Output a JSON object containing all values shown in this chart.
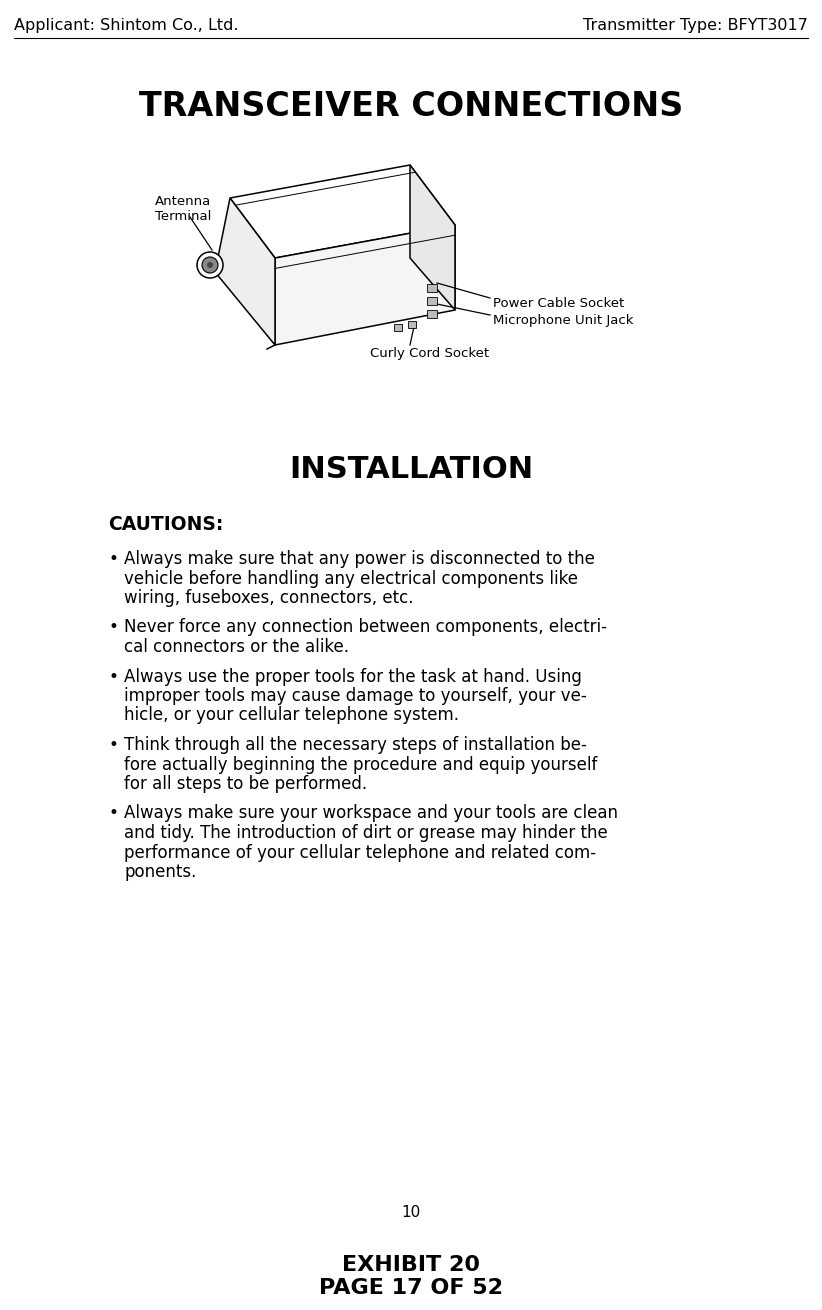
{
  "bg_color": "#ffffff",
  "header_left": "Applicant: Shintom Co., Ltd.",
  "header_right": "Transmitter Type: BFYT3017",
  "section1_title": "TRANSCEIVER CONNECTIONS",
  "antenna_label": "Antenna\nTerminal",
  "power_label": "Power Cable Socket",
  "mic_label": "Microphone Unit Jack",
  "curly_label": "Curly Cord Socket",
  "section2_title": "INSTALLATION",
  "cautions_title": "CAUTIONS:",
  "bullet_points": [
    "Always make sure that any power is disconnected to the\nvehicle before handling any electrical components like\nwiring, fuseboxes, connectors, etc.",
    "Never force any connection between components, electri-\ncal connectors or the alike.",
    "Always use the proper tools for the task at hand. Using\nimproper tools may cause damage to yourself, your ve-\nhicle, or your cellular telephone system.",
    "Think through all the necessary steps of installation be-\nfore actually beginning the procedure and equip yourself\nfor all steps to be performed.",
    "Always make sure your workspace and your tools are clean\nand tidy. The introduction of dirt or grease may hinder the\nperformance of your cellular telephone and related com-\nponents."
  ],
  "page_number": "10",
  "footer_line1": "EXHIBIT 20",
  "footer_line2": "PAGE 17 OF 52",
  "header_fontsize": 11.5,
  "title1_fontsize": 24,
  "title2_fontsize": 22,
  "cautions_fontsize": 13.5,
  "body_fontsize": 12,
  "label_fontsize": 9.5,
  "footer_fontsize": 16,
  "page_num_fontsize": 11
}
